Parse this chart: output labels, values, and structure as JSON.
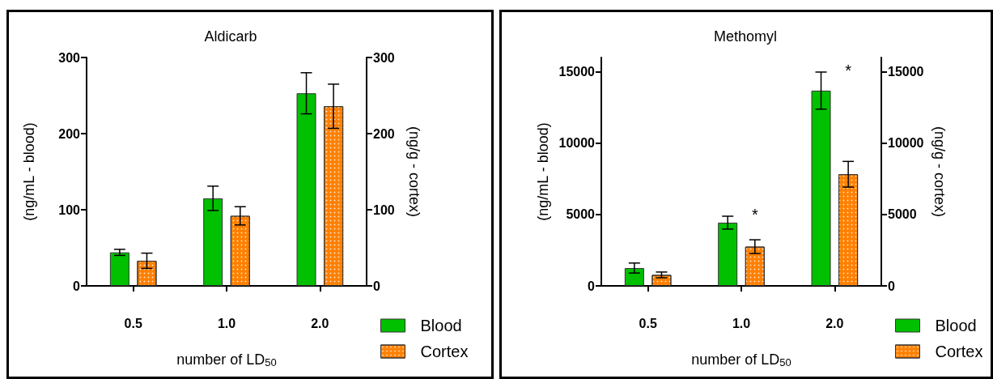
{
  "chart_data": [
    {
      "type": "bar",
      "title": "Aldicarb",
      "xlabel": "number of LD$_{50}$",
      "ylabel": "(ng/mL - blood)",
      "y2label": "(ng/g - cortex)",
      "categories": [
        "0.5",
        "1.0",
        "2.0"
      ],
      "series": [
        {
          "name": "Blood",
          "color": "#00c000",
          "values": [
            44,
            115,
            253
          ],
          "errors": [
            4,
            16,
            27
          ]
        },
        {
          "name": "Cortex",
          "color": "#ff8000",
          "values": [
            33,
            92,
            236
          ],
          "errors": [
            10,
            12,
            29
          ]
        }
      ],
      "ylim": [
        0,
        300
      ],
      "yticks": [
        0,
        100,
        200,
        300
      ],
      "y2lim": [
        0,
        300
      ],
      "y2ticks": [
        0,
        100,
        200,
        300
      ],
      "grid": false,
      "legend": "bottom right"
    },
    {
      "type": "bar",
      "title": "Methomyl",
      "xlabel": "number of LD$_{50}$",
      "ylabel": "(ng/mL - blood)",
      "y2label": "(ng/g - cortex)",
      "categories": [
        "0.5",
        "1.0",
        "2.0"
      ],
      "series": [
        {
          "name": "Blood",
          "color": "#00c000",
          "values": [
            1250,
            4430,
            13680
          ],
          "errors": [
            350,
            450,
            1300
          ]
        },
        {
          "name": "Cortex",
          "color": "#ff8000",
          "values": [
            770,
            2750,
            7820
          ],
          "errors": [
            200,
            480,
            900
          ]
        }
      ],
      "ylim": [
        0,
        16000
      ],
      "yticks": [
        0,
        5000,
        10000,
        15000
      ],
      "y2lim": [
        0,
        16000
      ],
      "y2ticks": [
        0,
        5000,
        10000,
        15000
      ],
      "grid": false,
      "legend": "bottom right",
      "annotations": [
        "*",
        "*"
      ]
    }
  ]
}
